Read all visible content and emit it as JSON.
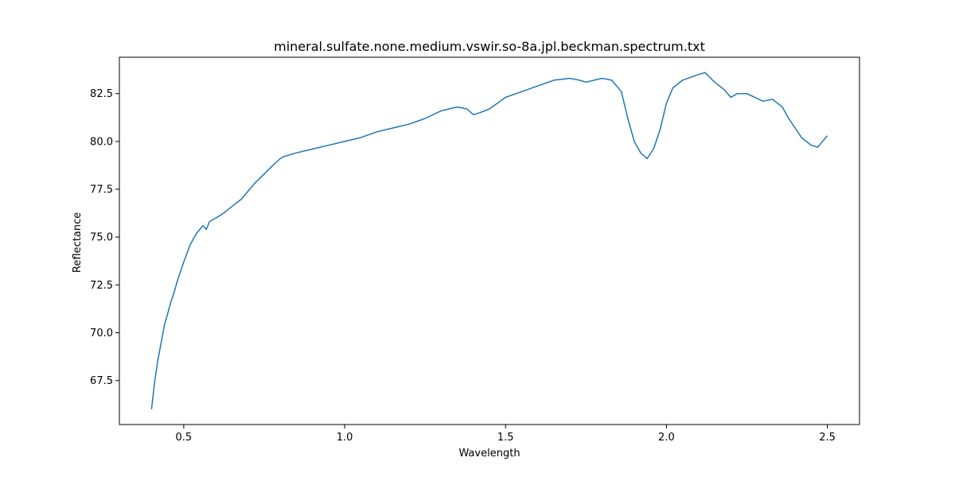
{
  "chart_data": {
    "type": "line",
    "title": "mineral.sulfate.none.medium.vswir.so-8a.jpl.beckman.spectrum.txt",
    "xlabel": "Wavelength",
    "ylabel": "Reflectance",
    "xlim": [
      0.3,
      2.6
    ],
    "ylim": [
      65.2,
      84.4
    ],
    "xticks": [
      0.5,
      1.0,
      1.5,
      2.0,
      2.5
    ],
    "xtick_labels": [
      "0.5",
      "1.0",
      "1.5",
      "2.0",
      "2.5"
    ],
    "yticks": [
      67.5,
      70.0,
      72.5,
      75.0,
      77.5,
      80.0,
      82.5
    ],
    "ytick_labels": [
      "67.5",
      "70.0",
      "72.5",
      "75.0",
      "77.5",
      "80.0",
      "82.5"
    ],
    "grid": false,
    "series": [
      {
        "color": "#1f77b4",
        "x": [
          0.4,
          0.41,
          0.42,
          0.43,
          0.44,
          0.45,
          0.46,
          0.47,
          0.48,
          0.5,
          0.52,
          0.54,
          0.56,
          0.57,
          0.58,
          0.6,
          0.62,
          0.65,
          0.68,
          0.7,
          0.72,
          0.75,
          0.78,
          0.8,
          0.81,
          0.83,
          0.85,
          0.9,
          0.95,
          1.0,
          1.05,
          1.1,
          1.15,
          1.2,
          1.25,
          1.3,
          1.35,
          1.38,
          1.4,
          1.42,
          1.45,
          1.5,
          1.55,
          1.6,
          1.65,
          1.7,
          1.73,
          1.75,
          1.8,
          1.83,
          1.86,
          1.88,
          1.9,
          1.92,
          1.94,
          1.96,
          1.98,
          2.0,
          2.02,
          2.05,
          2.1,
          2.12,
          2.15,
          2.18,
          2.2,
          2.22,
          2.25,
          2.3,
          2.33,
          2.36,
          2.38,
          2.4,
          2.42,
          2.45,
          2.47,
          2.48,
          2.5
        ],
        "y": [
          66.0,
          67.5,
          68.6,
          69.5,
          70.4,
          71.0,
          71.6,
          72.1,
          72.7,
          73.7,
          74.6,
          75.2,
          75.6,
          75.4,
          75.8,
          76.0,
          76.2,
          76.6,
          77.0,
          77.4,
          77.8,
          78.3,
          78.8,
          79.1,
          79.2,
          79.3,
          79.4,
          79.6,
          79.8,
          80.0,
          80.2,
          80.5,
          80.7,
          80.9,
          81.2,
          81.6,
          81.8,
          81.7,
          81.4,
          81.5,
          81.7,
          82.3,
          82.6,
          82.9,
          83.2,
          83.3,
          83.2,
          83.1,
          83.3,
          83.2,
          82.6,
          81.2,
          80.0,
          79.4,
          79.1,
          79.6,
          80.6,
          82.0,
          82.8,
          83.2,
          83.5,
          83.6,
          83.1,
          82.7,
          82.3,
          82.5,
          82.5,
          82.1,
          82.2,
          81.8,
          81.2,
          80.7,
          80.2,
          79.8,
          79.7,
          79.9,
          80.3
        ]
      }
    ]
  }
}
